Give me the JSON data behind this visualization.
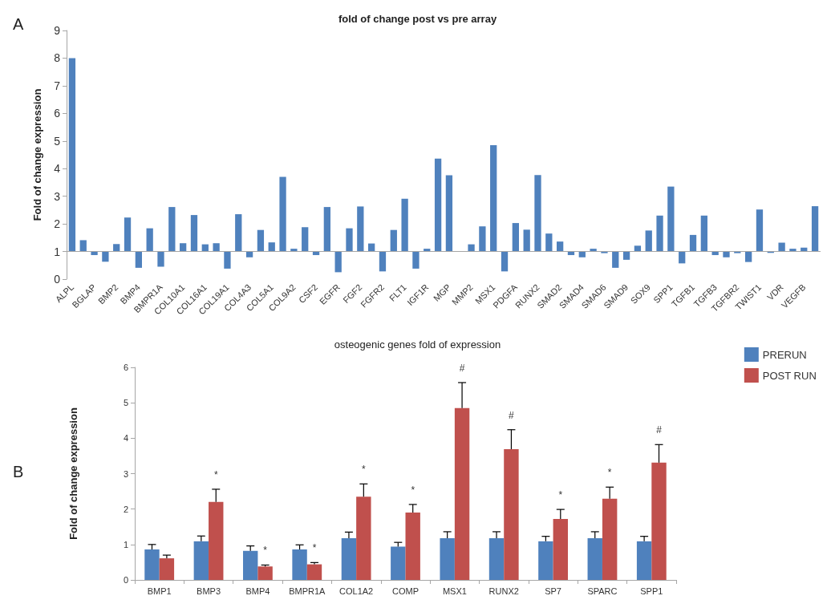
{
  "chart_data": [
    {
      "type": "bar",
      "title": "fold of change post vs pre array",
      "ylabel": "Fold of change expression",
      "annotations": [
        "A"
      ],
      "categories": [
        "ALPL",
        null,
        "BGLAP",
        null,
        "BMP2",
        null,
        "BMP4",
        null,
        "BMPR1A",
        null,
        "COL10A1",
        null,
        "COL16A1",
        null,
        "COL19A1",
        null,
        "COL4A3",
        null,
        "COL5A1",
        null,
        "COL9A2",
        null,
        "CSF2",
        null,
        "EGFR",
        null,
        "FGF2",
        null,
        "FGFR2",
        null,
        "FLT1",
        null,
        "IGF1R",
        null,
        "MGP",
        null,
        "MMP2",
        null,
        "MSX1",
        null,
        "PDGFA",
        null,
        "RUNX2",
        null,
        "SMAD2",
        null,
        "SMAD4",
        null,
        "SMAD6",
        null,
        "SMAD9",
        null,
        "SOX9",
        null,
        "SPP1",
        null,
        "TGFB1",
        null,
        "TGFB3",
        null,
        "TGFBR2",
        null,
        "TWIST1",
        null,
        "VDR",
        null,
        "VEGFB",
        null
      ],
      "base": [
        1,
        1,
        1,
        1,
        1,
        1,
        1,
        1,
        1,
        1,
        1,
        1,
        1,
        1,
        1,
        1,
        1,
        1,
        1,
        1,
        1,
        1,
        1,
        1,
        1,
        1,
        1,
        1,
        1,
        1,
        1,
        1,
        1,
        1,
        1,
        null,
        1,
        1,
        1,
        1,
        1,
        1,
        1,
        1,
        1,
        1,
        1,
        1,
        1,
        1,
        1,
        1,
        1,
        1,
        1,
        1,
        1,
        1,
        1,
        1,
        1,
        1,
        1,
        1,
        1,
        1,
        1,
        1
      ],
      "values": [
        7.0,
        0.41,
        -0.13,
        -0.37,
        0.27,
        1.23,
        -0.59,
        0.84,
        -0.55,
        1.61,
        0.3,
        1.32,
        0.26,
        0.3,
        -0.62,
        1.35,
        -0.21,
        0.78,
        0.33,
        2.7,
        0.1,
        0.88,
        -0.13,
        1.61,
        -0.75,
        0.84,
        1.63,
        0.29,
        -0.72,
        0.78,
        1.91,
        -0.62,
        0.1,
        3.36,
        2.76,
        null,
        0.26,
        0.91,
        3.85,
        -0.72,
        1.03,
        0.79,
        2.77,
        0.65,
        0.36,
        -0.13,
        -0.21,
        0.1,
        -0.06,
        -0.59,
        -0.3,
        0.21,
        0.76,
        1.3,
        2.35,
        -0.43,
        0.6,
        1.3,
        -0.13,
        -0.21,
        -0.06,
        -0.38,
        1.52,
        -0.05,
        0.32,
        0.1,
        0.14,
        1.64
      ],
      "color": "#4f81bd",
      "ylim": [
        0,
        9
      ],
      "yticks": [
        0,
        1,
        2,
        3,
        4,
        5,
        6,
        7,
        8,
        9
      ],
      "grid": false,
      "legend": false,
      "ref_lines": [
        {
          "axis": "y",
          "value": 1,
          "color": "#a6a6a6"
        }
      ]
    },
    {
      "type": "bar",
      "title": "osteogenic genes fold of expression",
      "ylabel": "Fold of change expression",
      "legend": "top right",
      "grid": false,
      "categories": [
        "BMP1",
        "BMP3",
        "BMP4",
        "BMPR1A",
        "COL1A2",
        "COMP",
        "MSX1",
        "RUNX2",
        "SP7",
        "SPARC",
        "SPP1"
      ],
      "series": [
        {
          "name": "PRERUN",
          "color": "#4f81bd",
          "values": [
            0.86,
            1.09,
            0.82,
            0.86,
            1.18,
            0.94,
            1.18,
            1.18,
            1.09,
            1.18,
            1.09
          ],
          "errors": [
            [
              0.86,
              1.0
            ],
            [
              1.09,
              1.24
            ],
            [
              0.82,
              0.96
            ],
            [
              0.86,
              0.99
            ],
            [
              1.18,
              1.35
            ],
            [
              0.94,
              1.06
            ],
            [
              1.18,
              1.36
            ],
            [
              1.18,
              1.36
            ],
            [
              1.09,
              1.23
            ],
            [
              1.18,
              1.36
            ],
            [
              1.09,
              1.23
            ]
          ]
        },
        {
          "name": "POST RUN",
          "color": "#c0504d",
          "values": [
            0.61,
            2.2,
            0.38,
            0.44,
            2.35,
            1.9,
            4.85,
            3.69,
            1.72,
            2.29,
            3.31
          ],
          "errors": [
            [
              0.61,
              0.7
            ],
            [
              2.2,
              2.56
            ],
            [
              0.38,
              0.42
            ],
            [
              0.44,
              0.49
            ],
            [
              2.35,
              2.71
            ],
            [
              1.9,
              2.13
            ],
            [
              4.85,
              5.57
            ],
            [
              3.69,
              4.24
            ],
            [
              1.72,
              1.99
            ],
            [
              2.29,
              2.62
            ],
            [
              3.31,
              3.82
            ]
          ]
        }
      ],
      "ylim": [
        0,
        6
      ],
      "yticks": [
        0,
        1,
        2,
        3,
        4,
        5,
        6
      ],
      "annotations": [
        "B",
        {
          "text": "*",
          "x": "BMP3",
          "y": 2.56
        },
        {
          "text": "*",
          "x": "BMP4",
          "y": 0.42
        },
        {
          "text": "*",
          "x": "BMPR1A",
          "y": 0.49
        },
        {
          "text": "*",
          "x": "COL1A2",
          "y": 2.71
        },
        {
          "text": "*",
          "x": "COMP",
          "y": 2.13
        },
        {
          "text": "#",
          "x": "MSX1",
          "y": 5.57
        },
        {
          "text": "#",
          "x": "RUNX2",
          "y": 4.24
        },
        {
          "text": "*",
          "x": "SP7",
          "y": 1.99
        },
        {
          "text": "*",
          "x": "SPARC",
          "y": 2.62
        },
        {
          "text": "#",
          "x": "SPP1",
          "y": 3.82
        }
      ]
    }
  ]
}
